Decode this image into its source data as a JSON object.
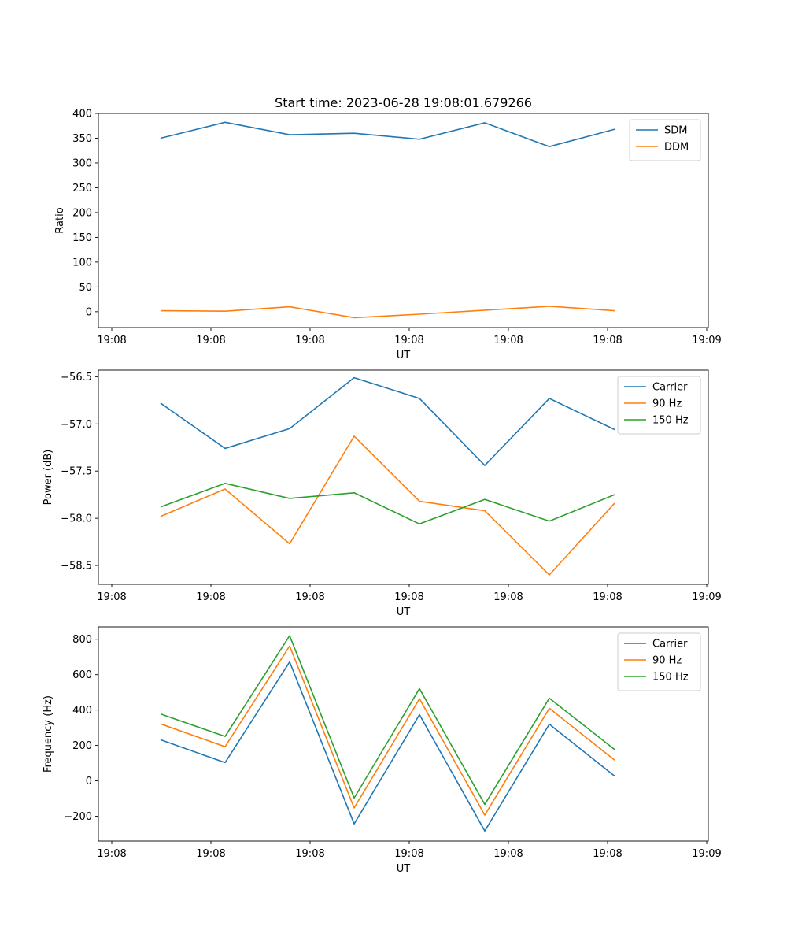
{
  "chart_data": [
    {
      "type": "line",
      "title": "Start time: 2023-06-28 19:08:01.679266",
      "xlabel": "UT",
      "ylabel": "Ratio",
      "x_tick_labels": [
        "19:08",
        "19:08",
        "19:08",
        "19:08",
        "19:08",
        "19:08",
        "19:08"
      ],
      "x_last_tick_label": "19:09",
      "ylim": [
        -32,
        400
      ],
      "yticks": [
        0,
        50,
        100,
        150,
        200,
        250,
        300,
        350,
        400
      ],
      "ytick_labels": [
        "0",
        "50",
        "100",
        "150",
        "200",
        "250",
        "300",
        "350",
        "400"
      ],
      "grid": false,
      "legend": "top-right",
      "series": [
        {
          "name": "SDM",
          "color": "#1f77b4",
          "values": [
            350,
            382,
            357,
            360,
            348,
            381,
            333,
            368
          ]
        },
        {
          "name": "DDM",
          "color": "#ff7f0e",
          "values": [
            2,
            1,
            10,
            -12,
            -5,
            3,
            11,
            2
          ]
        }
      ]
    },
    {
      "type": "line",
      "title": "",
      "xlabel": "UT",
      "ylabel": "Power (dB)",
      "x_tick_labels": [
        "19:08",
        "19:08",
        "19:08",
        "19:08",
        "19:08",
        "19:08",
        "19:08"
      ],
      "x_last_tick_label": "19:09",
      "ylim": [
        -58.7,
        -56.43
      ],
      "yticks": [
        -58.5,
        -58.0,
        -57.5,
        -57.0,
        -56.5
      ],
      "ytick_labels": [
        "−58.5",
        "−58.0",
        "−57.5",
        "−57.0",
        "−56.5"
      ],
      "grid": false,
      "legend": "top-right",
      "series": [
        {
          "name": "Carrier",
          "color": "#1f77b4",
          "values": [
            -56.78,
            -57.26,
            -57.05,
            -56.51,
            -56.73,
            -57.44,
            -56.73,
            -57.06
          ]
        },
        {
          "name": "90 Hz",
          "color": "#ff7f0e",
          "values": [
            -57.98,
            -57.69,
            -58.27,
            -57.13,
            -57.82,
            -57.92,
            -58.6,
            -57.84
          ]
        },
        {
          "name": "150 Hz",
          "color": "#2ca02c",
          "values": [
            -57.88,
            -57.63,
            -57.79,
            -57.73,
            -58.06,
            -57.8,
            -58.03,
            -57.75
          ]
        }
      ]
    },
    {
      "type": "line",
      "title": "",
      "xlabel": "UT",
      "ylabel": "Frequency (Hz)",
      "x_tick_labels": [
        "19:08",
        "19:08",
        "19:08",
        "19:08",
        "19:08",
        "19:08",
        "19:08"
      ],
      "x_last_tick_label": "19:09",
      "ylim": [
        -340,
        870
      ],
      "yticks": [
        -200,
        0,
        200,
        400,
        600,
        800
      ],
      "ytick_labels": [
        "−200",
        "0",
        "200",
        "400",
        "600",
        "800"
      ],
      "grid": false,
      "legend": "top-right",
      "series": [
        {
          "name": "Carrier",
          "color": "#1f77b4",
          "values": [
            232,
            103,
            672,
            -243,
            374,
            -283,
            320,
            27
          ]
        },
        {
          "name": "90 Hz",
          "color": "#ff7f0e",
          "values": [
            322,
            193,
            762,
            -153,
            464,
            -193,
            410,
            117
          ]
        },
        {
          "name": "150 Hz",
          "color": "#2ca02c",
          "values": [
            378,
            251,
            820,
            -97,
            521,
            -133,
            467,
            177
          ]
        }
      ]
    }
  ]
}
